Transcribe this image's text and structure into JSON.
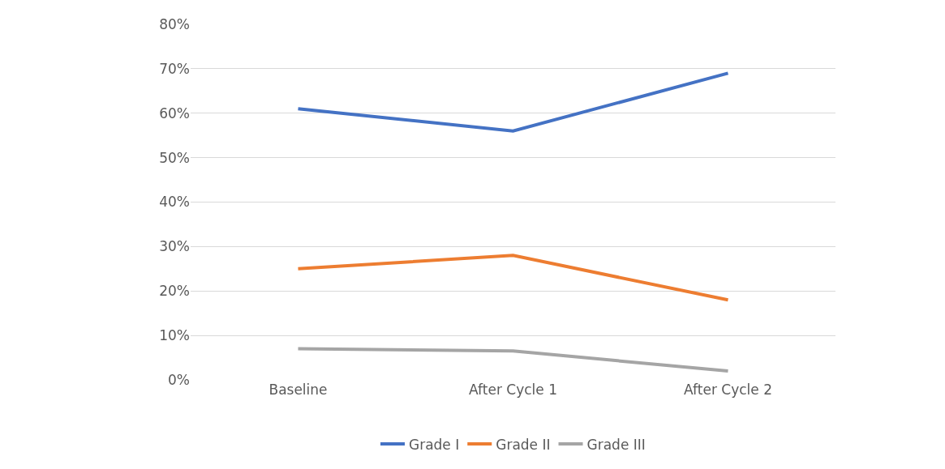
{
  "chart_data": {
    "type": "line",
    "categories": [
      "Baseline",
      "After Cycle 1",
      "After Cycle 2"
    ],
    "series": [
      {
        "name": "Grade I",
        "color": "#4472c4",
        "values": [
          61,
          56,
          69
        ]
      },
      {
        "name": "Grade II",
        "color": "#ed7d31",
        "values": [
          25,
          28,
          18
        ]
      },
      {
        "name": "Grade III",
        "color": "#a5a5a5",
        "values": [
          7,
          6.5,
          2
        ]
      }
    ],
    "ylim": [
      0,
      80
    ],
    "yticks": [
      {
        "value": 0,
        "label": "0%"
      },
      {
        "value": 10,
        "label": "10%"
      },
      {
        "value": 20,
        "label": "20%"
      },
      {
        "value": 30,
        "label": "30%"
      },
      {
        "value": 40,
        "label": "40%"
      },
      {
        "value": 50,
        "label": "50%"
      },
      {
        "value": 60,
        "label": "60%"
      },
      {
        "value": 70,
        "label": "70%"
      },
      {
        "value": 80,
        "label": "80%"
      }
    ],
    "grid": "y",
    "legend": "bottom",
    "marker": "none",
    "line_style": "solid"
  }
}
